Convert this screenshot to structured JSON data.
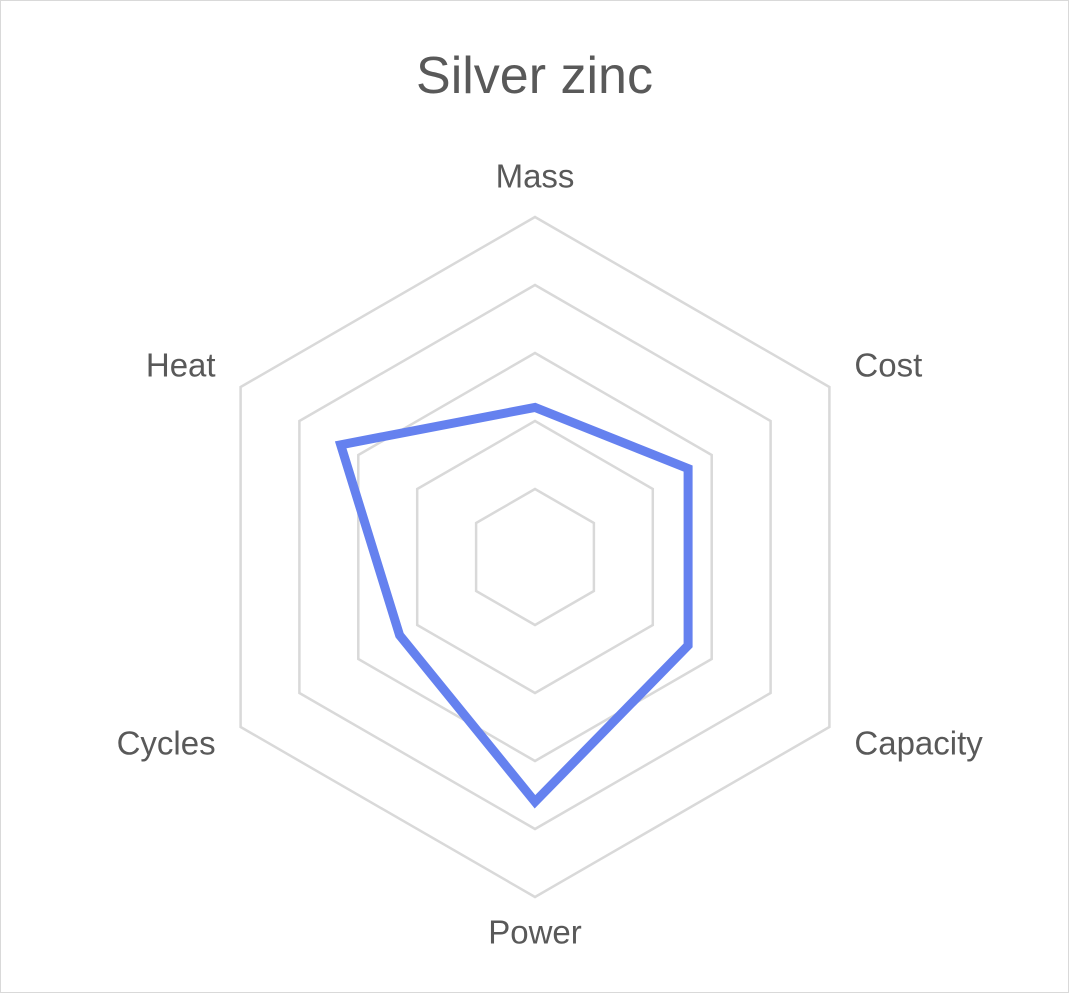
{
  "chart_data": {
    "type": "radar",
    "title": "Silver zinc",
    "categories": [
      "Mass",
      "Cost",
      "Capacity",
      "Power",
      "Cycles",
      "Heat"
    ],
    "rmax": 5,
    "grid_levels": [
      1,
      2,
      3,
      4,
      5
    ],
    "gridlines": true,
    "legend": "none",
    "grid_color": "#d9d9d9",
    "label_color": "#595959",
    "series": [
      {
        "values": [
          2.2,
          2.6,
          2.6,
          3.6,
          2.3,
          3.3
        ],
        "color": "#6581ef"
      }
    ]
  }
}
